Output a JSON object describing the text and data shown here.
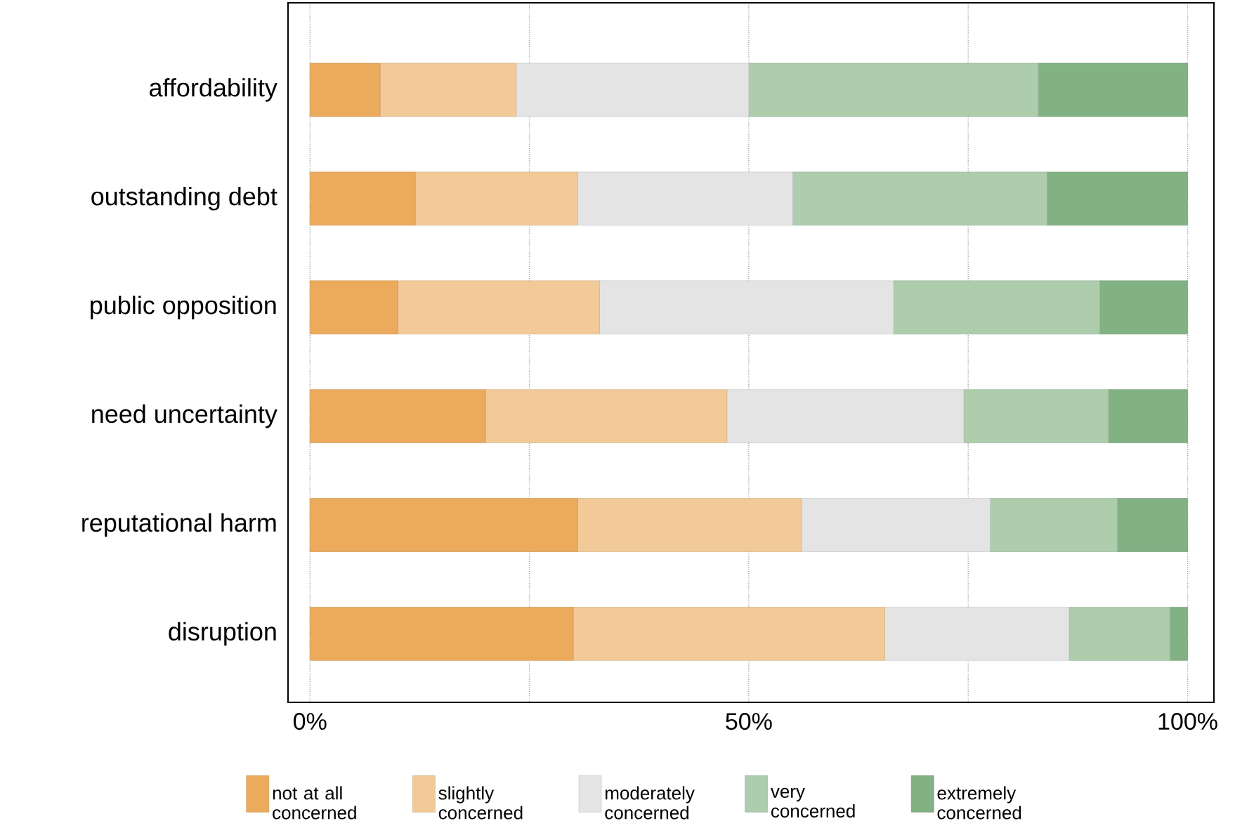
{
  "chart_data": {
    "type": "bar",
    "orientation": "horizontal",
    "stacked": true,
    "categories": [
      "affordability",
      "outstanding debt",
      "public opposition",
      "need uncertainty",
      "reputational harm",
      "disruption"
    ],
    "series": [
      {
        "name": "not at all concerned",
        "color": "#ecaa5c",
        "values": [
          8,
          12,
          10,
          20,
          30.5,
          30
        ]
      },
      {
        "name": "slightly concerned",
        "color": "#f2ca98",
        "values": [
          15.5,
          18.5,
          23,
          27.5,
          25.5,
          35.5
        ]
      },
      {
        "name": "moderately concerned",
        "color": "#e4e4e4",
        "values": [
          26.5,
          24.5,
          33.5,
          27,
          21.5,
          21
        ]
      },
      {
        "name": "very concerned",
        "color": "#adcdad",
        "values": [
          33,
          29,
          23.5,
          16.5,
          14.5,
          11.5
        ]
      },
      {
        "name": "extremely concerned",
        "color": "#82b283",
        "values": [
          17,
          16,
          10,
          9,
          8,
          2
        ]
      }
    ],
    "xlim": [
      -2.5,
      103
    ],
    "xticks": [
      {
        "value": 0,
        "label": "0%"
      },
      {
        "value": 25,
        "label": null
      },
      {
        "value": 50,
        "label": "50%"
      },
      {
        "value": 75,
        "label": null
      },
      {
        "value": 100,
        "label": "100%"
      }
    ],
    "grid": "x",
    "legend": "bottom"
  }
}
